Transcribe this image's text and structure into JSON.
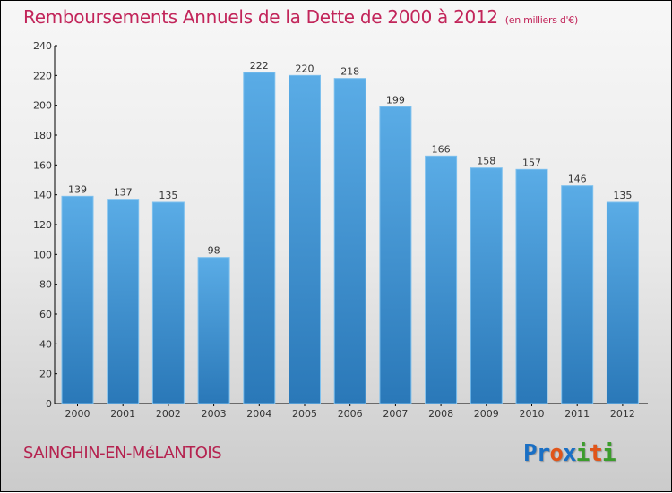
{
  "title": "Remboursements Annuels de la Dette de 2000 à 2012",
  "unit": "(en milliers d'€)",
  "city": "SAINGHIN-EN-MéLANTOIS",
  "logo": {
    "letters": [
      {
        "t": "Pr",
        "c": "#1a6fc4"
      },
      {
        "t": "o",
        "c": "#e0551a"
      },
      {
        "t": "x",
        "c": "#1a6fc4"
      },
      {
        "t": "i",
        "c": "#3c9c2c"
      },
      {
        "t": "t",
        "c": "#e0551a"
      },
      {
        "t": "i",
        "c": "#3c9c2c"
      }
    ]
  },
  "chart_data": {
    "type": "bar",
    "title": "Remboursements Annuels de la Dette de 2000 à 2012",
    "subtitle": "(en milliers d'€)",
    "xlabel": "",
    "ylabel": "",
    "categories": [
      "2000",
      "2001",
      "2002",
      "2003",
      "2004",
      "2005",
      "2006",
      "2007",
      "2008",
      "2009",
      "2010",
      "2011",
      "2012"
    ],
    "values": [
      139,
      137,
      135,
      98,
      222,
      220,
      218,
      199,
      166,
      158,
      157,
      146,
      135
    ],
    "ylim": [
      0,
      240
    ],
    "yticks": [
      0,
      20,
      40,
      60,
      80,
      100,
      120,
      140,
      160,
      180,
      200,
      220,
      240
    ],
    "grid": false,
    "bar_color_top": "#5aace6",
    "bar_color_bottom": "#2a78b8"
  }
}
